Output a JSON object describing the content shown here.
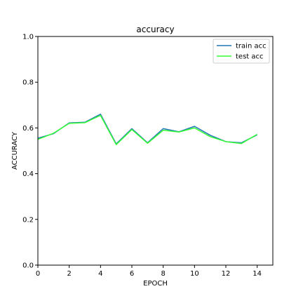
{
  "chart_data": {
    "type": "line",
    "title": "accuracy",
    "xlabel": "EPOCH",
    "ylabel": "ACCURACY",
    "xlim": [
      0,
      15
    ],
    "ylim": [
      0.0,
      1.0
    ],
    "x_ticks": [
      0,
      2,
      4,
      6,
      8,
      10,
      12,
      14
    ],
    "x_tick_labels": [
      "0",
      "2",
      "4",
      "6",
      "8",
      "10",
      "12",
      "14"
    ],
    "y_ticks": [
      0.0,
      0.2,
      0.4,
      0.6,
      0.8,
      1.0
    ],
    "y_tick_labels": [
      "0.0",
      "0.2",
      "0.4",
      "0.6",
      "0.8",
      "1.0"
    ],
    "grid": false,
    "legend_position": "top-right",
    "x": [
      0,
      1,
      2,
      3,
      4,
      5,
      6,
      7,
      8,
      9,
      10,
      11,
      12,
      13,
      14
    ],
    "series": [
      {
        "name": "train acc",
        "color": "#1f77b4",
        "values": [
          0.555,
          0.575,
          0.622,
          0.625,
          0.66,
          0.53,
          0.597,
          0.535,
          0.597,
          0.583,
          0.607,
          0.568,
          0.54,
          0.535,
          0.57
        ]
      },
      {
        "name": "test acc",
        "color": "#33ff33",
        "values": [
          0.55,
          0.577,
          0.62,
          0.623,
          0.655,
          0.527,
          0.593,
          0.533,
          0.59,
          0.582,
          0.6,
          0.562,
          0.54,
          0.532,
          0.572
        ]
      }
    ]
  }
}
